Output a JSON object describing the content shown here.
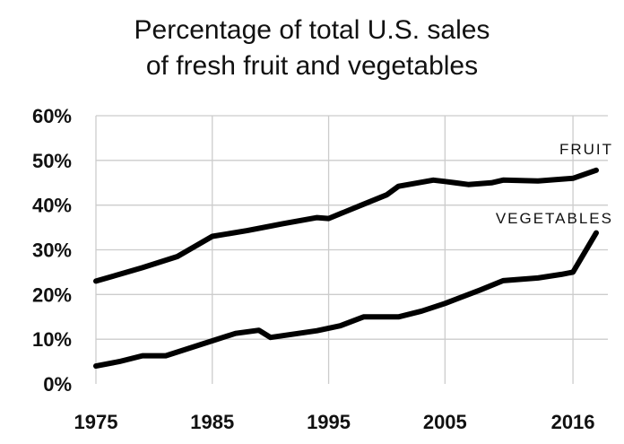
{
  "chart_data": {
    "type": "line",
    "title": [
      "Percentage of total U.S. sales",
      "of fresh fruit and vegetables"
    ],
    "xlabel": "",
    "ylabel": "",
    "xlim": [
      1975,
      2019
    ],
    "ylim": [
      0,
      60
    ],
    "x_ticks": [
      1975,
      1985,
      1995,
      2005,
      2016
    ],
    "x_tick_labels": [
      "1975",
      "1985",
      "1995",
      "2005",
      "2016"
    ],
    "y_ticks": [
      0,
      10,
      20,
      30,
      40,
      50,
      60
    ],
    "y_tick_labels": [
      "0%",
      "10%",
      "20%",
      "30%",
      "40%",
      "50%",
      "60%"
    ],
    "grid": true,
    "line_color": "#000000",
    "grid_color": "#cccccc",
    "series": [
      {
        "name": "FRUIT",
        "x": [
          1975,
          1979,
          1982,
          1985,
          1988,
          1991,
          1994,
          1995,
          1998,
          2000,
          2001,
          2004,
          2005,
          2007,
          2009,
          2010,
          2013,
          2016,
          2018
        ],
        "y": [
          23,
          26,
          28.5,
          33,
          34.3,
          35.8,
          37.2,
          37,
          40.2,
          42.3,
          44.2,
          45.6,
          45.3,
          44.6,
          45,
          45.6,
          45.4,
          46,
          47.8
        ]
      },
      {
        "name": "VEGETABLES",
        "x": [
          1975,
          1977,
          1979,
          1981,
          1984,
          1987,
          1989,
          1990,
          1994,
          1996,
          1998,
          2001,
          2003,
          2005,
          2008,
          2010,
          2013,
          2015,
          2016,
          2018
        ],
        "y": [
          4,
          5,
          6.3,
          6.3,
          8.8,
          11.3,
          12,
          10.4,
          11.9,
          13,
          15,
          15,
          16.3,
          18,
          21,
          23.1,
          23.7,
          24.5,
          25,
          33.8
        ]
      }
    ]
  }
}
